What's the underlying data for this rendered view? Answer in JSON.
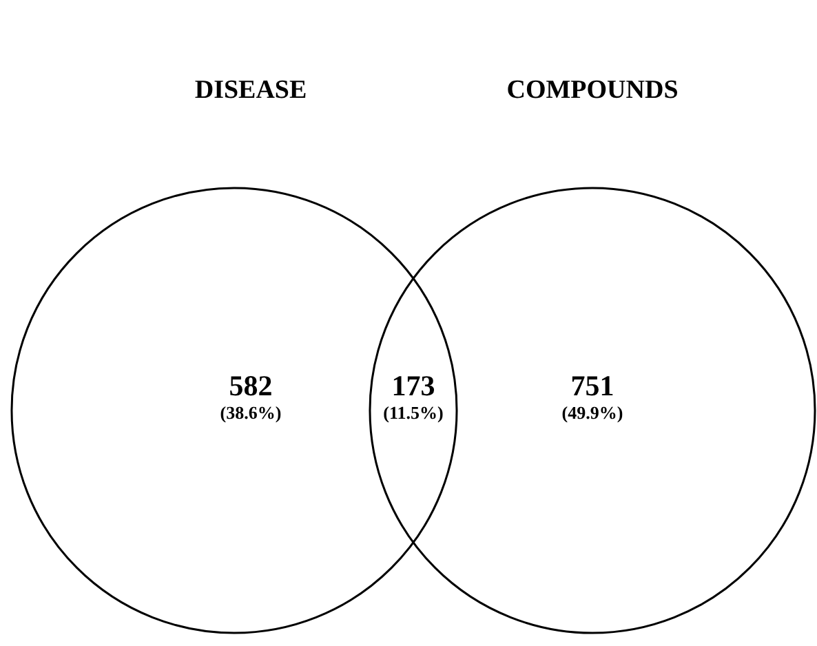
{
  "chart_data": {
    "type": "other",
    "categories": [
      "DISEASE",
      null,
      "COMPOUNDS"
    ],
    "values": [
      582,
      173,
      751
    ],
    "data_labels": true,
    "annotations": [
      "(38.6%)",
      "(11.5%)",
      "(49.9%)"
    ],
    "color": "#000000"
  }
}
